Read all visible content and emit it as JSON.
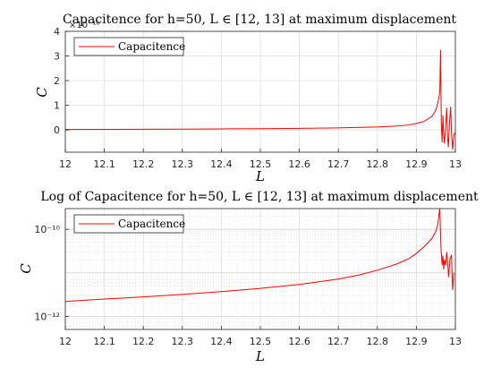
{
  "chart_data": [
    {
      "type": "line",
      "title": "Capacitence for h=50, L ∈ [12, 13] at maximum displacement",
      "xlabel": "L",
      "ylabel": "C",
      "y_exponent_label": "×10⁻¹⁰",
      "xlim": [
        12,
        13
      ],
      "ylim": [
        -0.9,
        4
      ],
      "y_scale": "linear",
      "x_ticks": [
        "12",
        "12.1",
        "12.2",
        "12.3",
        "12.4",
        "12.5",
        "12.6",
        "12.7",
        "12.8",
        "12.9",
        "13"
      ],
      "y_ticks": [
        "0",
        "1",
        "2",
        "3",
        "4"
      ],
      "grid": true,
      "legend_position": "top-left",
      "series": [
        {
          "name": "Capacitence",
          "color": "#ff0000",
          "x": [
            12.0,
            12.1,
            12.2,
            12.3,
            12.4,
            12.5,
            12.6,
            12.7,
            12.8,
            12.85,
            12.88,
            12.9,
            12.92,
            12.94,
            12.95,
            12.955,
            12.96,
            12.962,
            12.964,
            12.966,
            12.968,
            12.97,
            12.972,
            12.975,
            12.978,
            12.98,
            12.982,
            12.985,
            12.988,
            12.99,
            12.993,
            12.996,
            13.0
          ],
          "y": [
            0.02,
            0.025,
            0.03,
            0.035,
            0.045,
            0.055,
            0.065,
            0.085,
            0.12,
            0.16,
            0.2,
            0.26,
            0.35,
            0.55,
            0.8,
            1.1,
            1.5,
            3.25,
            0.3,
            -0.5,
            0.6,
            -0.2,
            -0.55,
            0.1,
            0.9,
            -0.3,
            -0.7,
            0.3,
            0.95,
            -0.1,
            -0.8,
            -0.2,
            -0.1
          ]
        }
      ]
    },
    {
      "type": "line",
      "title": "Log of Capacitence for h=50, L ∈ [12, 13] at maximum displacement",
      "xlabel": "L",
      "ylabel": "C",
      "xlim": [
        12,
        13
      ],
      "ylim": [
        5e-13,
        3e-10
      ],
      "y_scale": "log",
      "x_ticks": [
        "12",
        "12.1",
        "12.2",
        "12.3",
        "12.4",
        "12.5",
        "12.6",
        "12.7",
        "12.8",
        "12.9",
        "13"
      ],
      "y_ticks": [
        "10⁻¹²",
        "10⁻¹⁰"
      ],
      "grid": true,
      "legend_position": "top-left",
      "series": [
        {
          "name": "Capacitence",
          "color": "#ff0000",
          "x": [
            12.0,
            12.1,
            12.2,
            12.3,
            12.4,
            12.5,
            12.6,
            12.7,
            12.75,
            12.8,
            12.85,
            12.88,
            12.9,
            12.92,
            12.94,
            12.95,
            12.955,
            12.96,
            12.963,
            12.966,
            12.968,
            12.97,
            12.972,
            12.975,
            12.978,
            12.98,
            12.983,
            12.986,
            12.99,
            12.993,
            12.996
          ],
          "y": [
            2.2e-12,
            2.5e-12,
            2.8e-12,
            3.2e-12,
            3.7e-12,
            4.4e-12,
            5.4e-12,
            7.2e-12,
            8.8e-12,
            1.15e-11,
            1.6e-11,
            2.1e-11,
            2.8e-11,
            4e-11,
            6.2e-11,
            9e-11,
            1.3e-10,
            3.2e-10,
            4e-11,
            1.5e-11,
            2.5e-11,
            1.2e-11,
            2e-11,
            1.5e-11,
            3e-11,
            1.8e-11,
            8e-12,
            2e-11,
            2.6e-11,
            4e-12,
            1e-11
          ]
        }
      ]
    }
  ]
}
